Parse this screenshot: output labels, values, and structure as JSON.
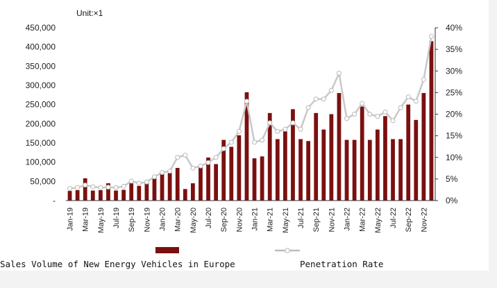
{
  "chart_data": {
    "type": "bar+line",
    "unit_label": "Unit:×1",
    "x": [
      "Jan-19",
      "Feb-19",
      "Mar-19",
      "Apr-19",
      "May-19",
      "Jun-19",
      "Jul-19",
      "Aug-19",
      "Sep-19",
      "Oct-19",
      "Nov-19",
      "Dec-19",
      "Jan-20",
      "Feb-20",
      "Mar-20",
      "Apr-20",
      "May-20",
      "Jun-20",
      "Jul-20",
      "Aug-20",
      "Sep-20",
      "Oct-20",
      "Nov-20",
      "Dec-20",
      "Jan-21",
      "Feb-21",
      "Mar-21",
      "Apr-21",
      "May-21",
      "Jun-21",
      "Jul-21",
      "Aug-21",
      "Sep-21",
      "Oct-21",
      "Nov-21",
      "Dec-21",
      "Jan-22",
      "Feb-22",
      "Mar-22",
      "Apr-22",
      "May-22",
      "Jun-22",
      "Jul-22",
      "Aug-22",
      "Sep-22",
      "Oct-22",
      "Nov-22",
      "Dec-22"
    ],
    "x_tick_labels": [
      "Jan-19",
      "Mar-19",
      "May-19",
      "Jul-19",
      "Sep-19",
      "Nov-19",
      "Jan-20",
      "Mar-20",
      "May-20",
      "Jul-20",
      "Sep-20",
      "Nov-20",
      "Jan-21",
      "Mar-21",
      "May-21",
      "Jul-21",
      "Sep-21",
      "Nov-21",
      "Jan-22",
      "Mar-22",
      "May-22",
      "Jul-22",
      "Sep-22",
      "Nov-22"
    ],
    "series": [
      {
        "name": "Sales Volume of New Energy Vehicles in Europe",
        "kind": "bar",
        "axis": "left",
        "color": "#7b1010",
        "values": [
          25000,
          27000,
          58000,
          26000,
          27000,
          45000,
          26000,
          28000,
          45000,
          38000,
          45000,
          65000,
          70000,
          72000,
          85000,
          30000,
          45000,
          88000,
          112000,
          95000,
          158000,
          140000,
          170000,
          282000,
          110000,
          115000,
          228000,
          160000,
          180000,
          238000,
          160000,
          155000,
          228000,
          185000,
          225000,
          280000,
          158000,
          158000,
          245000,
          158000,
          185000,
          220000,
          160000,
          160000,
          250000,
          210000,
          280000,
          415000
        ]
      },
      {
        "name": "Penetration Rate",
        "kind": "line",
        "axis": "right",
        "color": "#c8c8c8",
        "values": [
          2.8,
          3.0,
          3.6,
          3.2,
          3.0,
          3.1,
          3.0,
          3.3,
          4.5,
          4.0,
          4.3,
          5.5,
          6.5,
          6.8,
          10.0,
          10.5,
          7.5,
          8.0,
          8.8,
          10.0,
          12.0,
          13.5,
          16.0,
          23.0,
          13.5,
          14.0,
          18.0,
          16.0,
          16.5,
          18.0,
          16.5,
          21.5,
          23.5,
          23.5,
          25.5,
          29.5,
          19.0,
          20.0,
          22.5,
          20.0,
          19.5,
          20.5,
          18.5,
          21.5,
          24.0,
          23.0,
          28.0,
          38.0
        ]
      }
    ],
    "y_left": {
      "lim": [
        0,
        450000
      ],
      "ticks": [
        "-",
        "50,000",
        "100,000",
        "150,000",
        "200,000",
        "250,000",
        "300,000",
        "350,000",
        "400,000",
        "450,000"
      ]
    },
    "y_right": {
      "lim": [
        0,
        40
      ],
      "ticks": [
        "0%",
        "5%",
        "10%",
        "15%",
        "20%",
        "25%",
        "30%",
        "35%",
        "40%"
      ]
    },
    "legend": {
      "placement": "bottom",
      "bar_label": "Sales Volume of New Energy Vehicles in Europe",
      "line_label": "Penetration Rate"
    },
    "grid": false
  }
}
